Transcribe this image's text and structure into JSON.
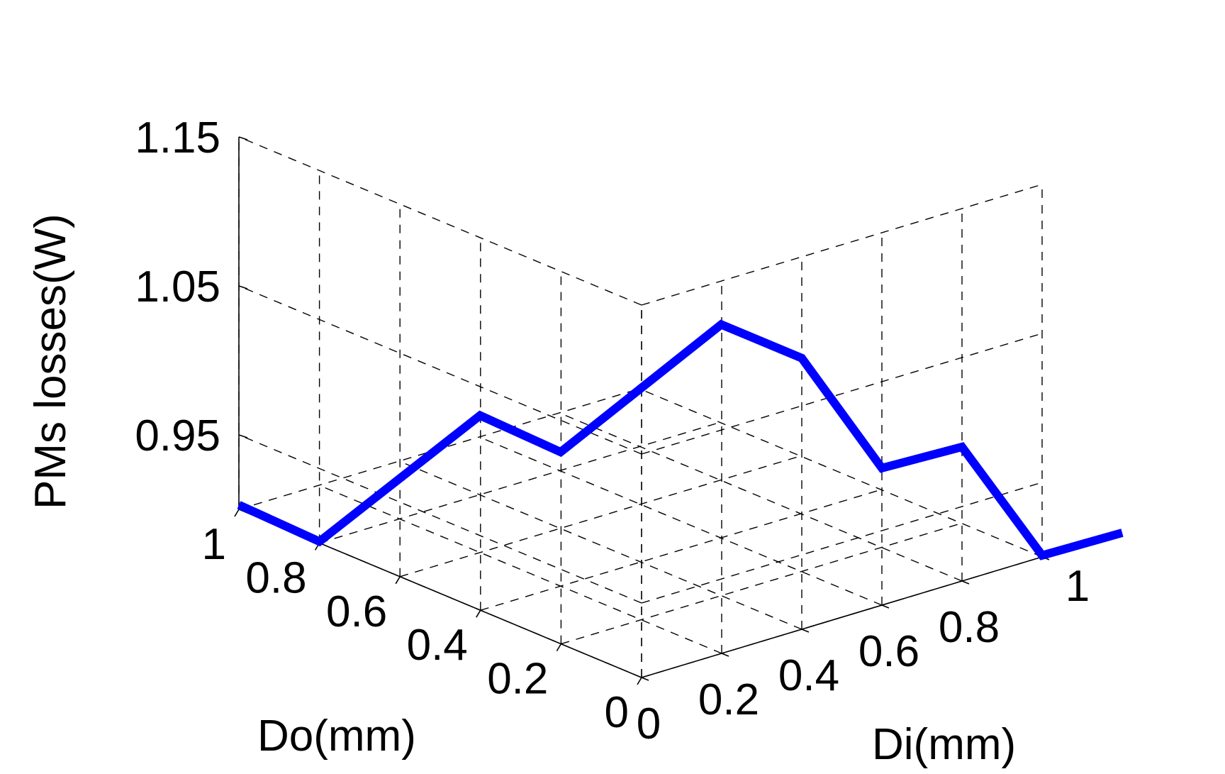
{
  "chart_data": {
    "type": "line",
    "projection": "3d",
    "xlabel": "Do(mm)",
    "ylabel": "Di(mm)",
    "zlabel": "PMs losses(W)",
    "x_ticks": [
      "0",
      "0.2",
      "0.4",
      "0.6",
      "0.8",
      "1"
    ],
    "y_ticks": [
      "0",
      "0.2",
      "0.4",
      "0.6",
      "0.8",
      "1"
    ],
    "z_ticks": [
      "0.95",
      "1.05",
      "1.15"
    ],
    "xlim": [
      0,
      1
    ],
    "ylim": [
      0,
      1
    ],
    "zlim": [
      0.9,
      1.15
    ],
    "grid": true,
    "series": [
      {
        "color": "#0000ff",
        "points": [
          {
            "x": 1.0,
            "y": 0.0,
            "z": 0.903
          },
          {
            "x": 0.8,
            "y": 0.0,
            "z": 0.901
          },
          {
            "x": 0.6,
            "y": 0.2,
            "z": 0.992
          },
          {
            "x": 0.4,
            "y": 0.2,
            "z": 0.99
          },
          {
            "x": 0.2,
            "y": 0.4,
            "z": 1.082
          },
          {
            "x": 0.0,
            "y": 0.4,
            "z": 1.082
          },
          {
            "x": 0.0,
            "y": 0.6,
            "z": 0.992
          },
          {
            "x": 0.0,
            "y": 0.8,
            "z": 0.99
          },
          {
            "x": 0.0,
            "y": 1.0,
            "z": 0.901
          },
          {
            "x": 0.0,
            "y": 1.2,
            "z": 0.9
          }
        ]
      }
    ]
  }
}
